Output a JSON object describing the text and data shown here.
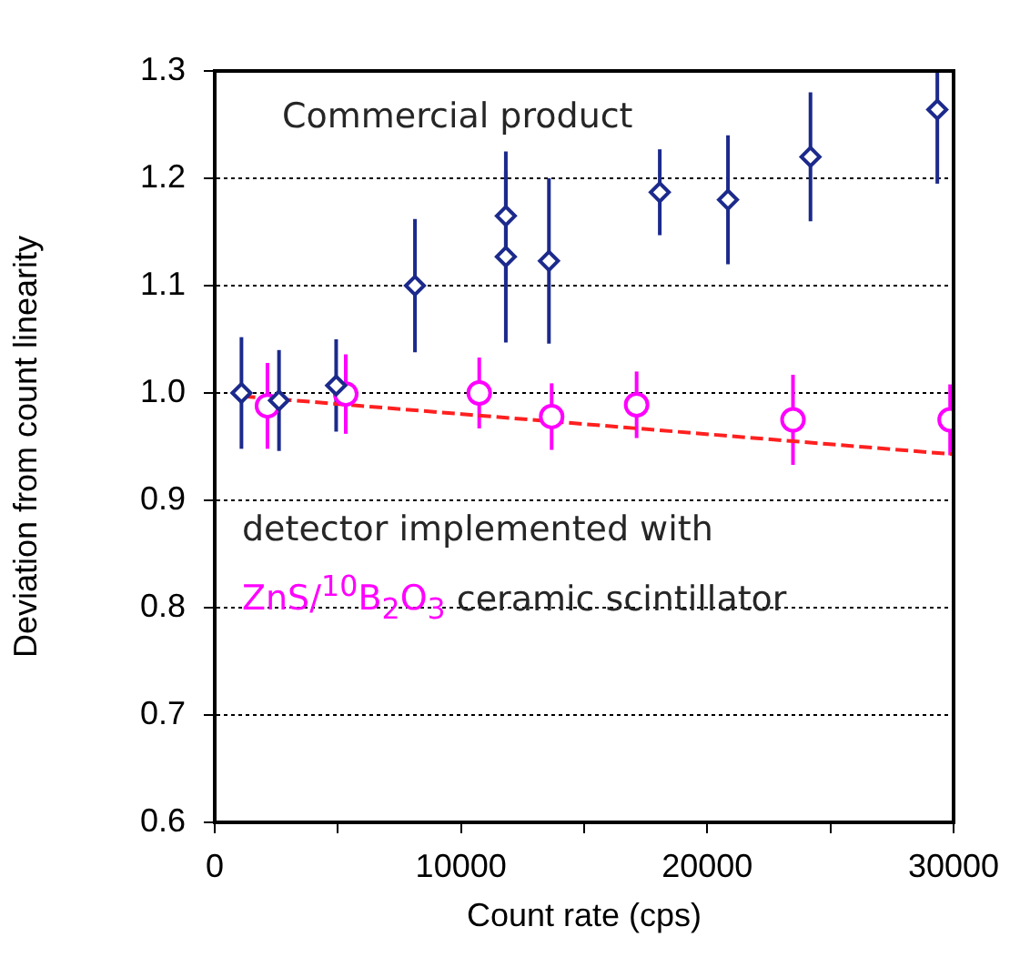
{
  "chart_data": {
    "type": "scatter",
    "xlabel": "Count rate (cps)",
    "ylabel": "Deviation from count linearity",
    "xlim": [
      0,
      30000
    ],
    "xticks": [
      0,
      {
        "value": 5000,
        "label": null
      },
      10000,
      {
        "value": 15000,
        "label": null
      },
      20000,
      {
        "value": 25000,
        "label": null
      },
      30000
    ],
    "ylim": [
      0.6,
      1.3
    ],
    "yticks": [
      0.6,
      0.7,
      0.8,
      0.9,
      {
        "value": 1,
        "label": "1.0"
      },
      1.1,
      1.2,
      1.3
    ],
    "grid": "y",
    "legend": false,
    "series": [
      {
        "type": "scatter",
        "marker": "diamond",
        "color": "#1c2a8c",
        "x": [
          1085,
          2610,
          4930,
          8130,
          11820,
          11820,
          13570,
          18070,
          20840,
          24190,
          29340
        ],
        "values": [
          1.0,
          0.993,
          1.007,
          1.1,
          1.165,
          1.127,
          1.123,
          1.187,
          1.18,
          1.22,
          1.264
        ],
        "errors": [
          0.052,
          0.047,
          0.043,
          0.062,
          0.06,
          0.08,
          0.077,
          0.04,
          0.06,
          0.06,
          [
            1.195,
            1.3
          ]
        ]
      },
      {
        "type": "scatter",
        "marker": "circle",
        "color": "#ff00ff",
        "x": [
          2140,
          5320,
          10740,
          13680,
          17130,
          23480,
          29860
        ],
        "values": [
          0.988,
          0.999,
          1.0,
          0.978,
          0.989,
          0.975,
          0.975
        ],
        "errors": [
          0.04,
          0.037,
          0.033,
          0.031,
          0.031,
          0.042,
          0.033
        ]
      },
      {
        "type": "line",
        "marker": "none",
        "line_style": "dashed",
        "color": "#ff2020",
        "x": [
          1130,
          29950
        ],
        "values": [
          0.997,
          0.943
        ]
      }
    ],
    "annotations": [
      "Commercial product",
      "detector implemented with",
      "ZnS/$^{10}$B$_{2}$O$_{3}$ ceramic scintillator"
    ]
  }
}
